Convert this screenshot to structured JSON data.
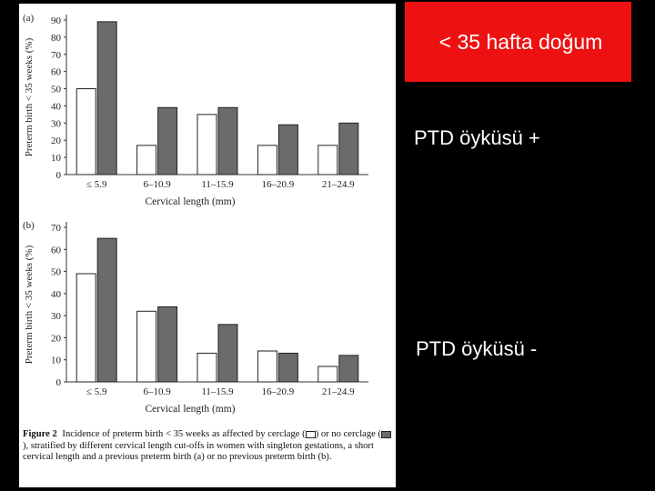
{
  "slide": {
    "title": "< 35 hafta doğum",
    "label_plus": "PTD öyküsü +",
    "label_minus": "PTD öyküsü -",
    "title_bg_color": "#ee1111"
  },
  "caption": {
    "figure_label": "Figure 2",
    "text_1": "Incidence of preterm birth < 35 weeks as affected by cerclage (",
    "text_2": ") or no cerclage (",
    "text_3": "), stratified by different cervical length cut-offs in women with singleton gestations, a short cervical length and a previous preterm birth (a) or no previous preterm birth (b)."
  },
  "chart_data": [
    {
      "type": "bar",
      "panel_label": "(a)",
      "categories": [
        "≤ 5.9",
        "6–10.9",
        "11–15.9",
        "16–20.9",
        "21–24.9"
      ],
      "series": [
        {
          "values": [
            50,
            17,
            35,
            17,
            17
          ],
          "color": "#ffffff"
        },
        {
          "values": [
            89,
            39,
            39,
            29,
            30
          ],
          "color": "#6b6b6b"
        }
      ],
      "xlabel": "Cervical length (mm)",
      "ylabel": "Preterm birth < 35 weeks (%)",
      "ylim": [
        0,
        90
      ],
      "yticks": [
        0,
        10,
        20,
        30,
        40,
        50,
        60,
        70,
        80,
        90
      ],
      "grid": false
    },
    {
      "type": "bar",
      "panel_label": "(b)",
      "categories": [
        "≤ 5.9",
        "6–10.9",
        "11–15.9",
        "16–20.9",
        "21–24.9"
      ],
      "series": [
        {
          "values": [
            49,
            32,
            13,
            14,
            7
          ],
          "color": "#ffffff"
        },
        {
          "values": [
            65,
            34,
            26,
            13,
            12
          ],
          "color": "#6b6b6b"
        }
      ],
      "xlabel": "Cervical length (mm)",
      "ylabel": "Preterm birth < 35 weeks (%)",
      "ylim": [
        0,
        70
      ],
      "yticks": [
        0,
        10,
        20,
        30,
        40,
        50,
        60,
        70
      ],
      "grid": false
    }
  ]
}
